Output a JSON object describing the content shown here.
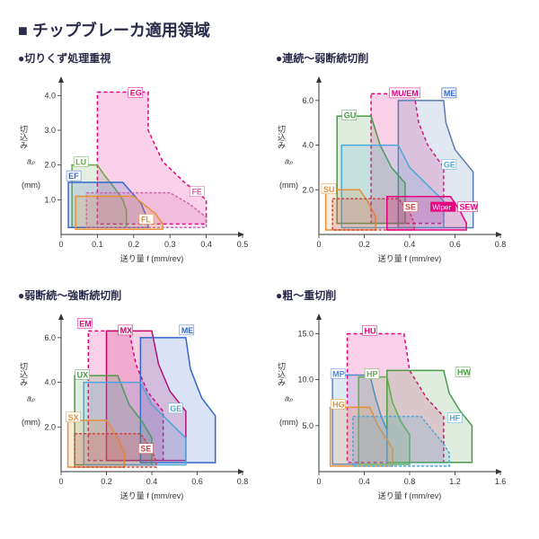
{
  "main_title": "■ チップブレーカ適用領域",
  "axes": {
    "xlabel": "送り量 f (mm/rev)",
    "ylabel_top": "切込み",
    "ylabel_mid": "aₚ",
    "ylabel_bot": "(mm)"
  },
  "charts": [
    {
      "subtitle": "●切りくず処理重視",
      "xlim": [
        0,
        0.5
      ],
      "xtick_step": 0.1,
      "ylim": [
        0,
        4.5
      ],
      "yticks": [
        1.0,
        2.0,
        3.0,
        4.0
      ],
      "regions": [
        {
          "label": "EG",
          "color": "#e6007e",
          "dash": "4,3",
          "poly": [
            [
              0.1,
              4.1
            ],
            [
              0.24,
              4.1
            ],
            [
              0.24,
              3.0
            ],
            [
              0.28,
              2.1
            ],
            [
              0.34,
              1.5
            ],
            [
              0.4,
              1.0
            ],
            [
              0.4,
              0.3
            ],
            [
              0.1,
              0.3
            ]
          ],
          "lx": 0.19,
          "ly": 4.0
        },
        {
          "label": "LU",
          "color": "#6aa84f",
          "dash": "",
          "poly": [
            [
              0.03,
              2.0
            ],
            [
              0.1,
              2.0
            ],
            [
              0.12,
              1.7
            ],
            [
              0.15,
              1.3
            ],
            [
              0.17,
              1.0
            ],
            [
              0.18,
              0.7
            ],
            [
              0.18,
              0.2
            ],
            [
              0.03,
              0.2
            ]
          ],
          "lx": 0.04,
          "ly": 2.0
        },
        {
          "label": "EF",
          "color": "#3366cc",
          "dash": "",
          "poly": [
            [
              0.02,
              1.5
            ],
            [
              0.17,
              1.5
            ],
            [
              0.22,
              0.9
            ],
            [
              0.24,
              0.4
            ],
            [
              0.24,
              0.2
            ],
            [
              0.02,
              0.2
            ]
          ],
          "lx": 0.02,
          "ly": 1.6
        },
        {
          "label": "FE",
          "color": "#cc66aa",
          "dash": "3,2",
          "poly": [
            [
              0.07,
              1.2
            ],
            [
              0.3,
              1.2
            ],
            [
              0.35,
              0.9
            ],
            [
              0.4,
              0.5
            ],
            [
              0.4,
              0.2
            ],
            [
              0.07,
              0.2
            ]
          ],
          "lx": 0.36,
          "ly": 1.15
        },
        {
          "label": "FL",
          "color": "#e69138",
          "dash": "",
          "poly": [
            [
              0.04,
              1.1
            ],
            [
              0.2,
              1.1
            ],
            [
              0.26,
              0.6
            ],
            [
              0.28,
              0.3
            ],
            [
              0.28,
              0.15
            ],
            [
              0.04,
              0.15
            ]
          ],
          "lx": 0.22,
          "ly": 0.35
        }
      ]
    },
    {
      "subtitle": "●連続～弱断続切削",
      "xlim": [
        0,
        0.8
      ],
      "xtick_step": 0.2,
      "ylim": [
        0,
        7
      ],
      "yticks": [
        2.0,
        4.0,
        6.0
      ],
      "regions": [
        {
          "label": "MU/EM",
          "color": "#e6007e",
          "dash": "4,3",
          "poly": [
            [
              0.23,
              6.3
            ],
            [
              0.42,
              6.3
            ],
            [
              0.44,
              5.0
            ],
            [
              0.48,
              4.0
            ],
            [
              0.55,
              3.0
            ],
            [
              0.55,
              0.5
            ],
            [
              0.23,
              0.5
            ]
          ],
          "lx": 0.32,
          "ly": 6.2,
          "extra_label": {
            "text": "ME",
            "color": "#3366cc",
            "lx": 0.55,
            "ly": 6.2
          }
        },
        {
          "label": "",
          "color": "#5b7db1",
          "dash": "",
          "poly": [
            [
              0.35,
              6.0
            ],
            [
              0.55,
              6.0
            ],
            [
              0.56,
              5.0
            ],
            [
              0.6,
              3.8
            ],
            [
              0.68,
              2.8
            ],
            [
              0.68,
              0.3
            ],
            [
              0.35,
              0.3
            ]
          ],
          "lx": 0,
          "ly": 0
        },
        {
          "label": "GU",
          "color": "#4a9a4a",
          "dash": "",
          "poly": [
            [
              0.08,
              5.3
            ],
            [
              0.23,
              5.3
            ],
            [
              0.27,
              4.0
            ],
            [
              0.32,
              3.0
            ],
            [
              0.38,
              2.3
            ],
            [
              0.38,
              0.5
            ],
            [
              0.08,
              0.5
            ]
          ],
          "lx": 0.11,
          "ly": 5.2
        },
        {
          "label": "GE",
          "color": "#4da6d9",
          "dash": "",
          "poly": [
            [
              0.1,
              4.0
            ],
            [
              0.35,
              4.0
            ],
            [
              0.4,
              3.0
            ],
            [
              0.48,
              2.2
            ],
            [
              0.55,
              1.5
            ],
            [
              0.55,
              0.3
            ],
            [
              0.1,
              0.3
            ]
          ],
          "lx": 0.55,
          "ly": 3.0
        },
        {
          "label": "SU",
          "color": "#e69138",
          "dash": "",
          "poly": [
            [
              0.03,
              2.0
            ],
            [
              0.18,
              2.0
            ],
            [
              0.22,
              1.4
            ],
            [
              0.25,
              0.8
            ],
            [
              0.25,
              0.2
            ],
            [
              0.03,
              0.2
            ]
          ],
          "lx": 0.02,
          "ly": 1.9
        },
        {
          "label": "SE",
          "color": "#cc4444",
          "dash": "3,2",
          "poly": [
            [
              0.06,
              1.6
            ],
            [
              0.35,
              1.6
            ],
            [
              0.4,
              1.0
            ],
            [
              0.42,
              0.5
            ],
            [
              0.42,
              0.2
            ],
            [
              0.06,
              0.2
            ]
          ],
          "lx": 0.38,
          "ly": 1.1
        },
        {
          "label": "SEW",
          "color": "#e6007e",
          "dash": "",
          "poly": [
            [
              0.3,
              1.7
            ],
            [
              0.58,
              1.7
            ],
            [
              0.62,
              1.1
            ],
            [
              0.65,
              0.5
            ],
            [
              0.65,
              0.2
            ],
            [
              0.3,
              0.2
            ]
          ],
          "lx": 0.62,
          "ly": 1.1,
          "wiper": {
            "lx": 0.5,
            "ly": 1.1
          }
        }
      ]
    },
    {
      "subtitle": "●弱断続～強断続切削",
      "xlim": [
        0,
        0.8
      ],
      "xtick_step": 0.2,
      "ylim": [
        0,
        7
      ],
      "yticks": [
        2.0,
        4.0,
        6.0
      ],
      "regions": [
        {
          "label": "EM",
          "color": "#e6007e",
          "dash": "4,3",
          "poly": [
            [
              0.12,
              6.3
            ],
            [
              0.3,
              6.3
            ],
            [
              0.33,
              4.8
            ],
            [
              0.38,
              3.6
            ],
            [
              0.45,
              2.7
            ],
            [
              0.45,
              0.5
            ],
            [
              0.12,
              0.5
            ]
          ],
          "lx": 0.08,
          "ly": 6.5
        },
        {
          "label": "MX",
          "color": "#cc0066",
          "dash": "",
          "poly": [
            [
              0.2,
              6.3
            ],
            [
              0.4,
              6.3
            ],
            [
              0.43,
              4.8
            ],
            [
              0.48,
              3.6
            ],
            [
              0.55,
              2.7
            ],
            [
              0.55,
              0.5
            ],
            [
              0.2,
              0.5
            ]
          ],
          "lx": 0.26,
          "ly": 6.2
        },
        {
          "label": "ME",
          "color": "#3366cc",
          "dash": "",
          "poly": [
            [
              0.35,
              6.0
            ],
            [
              0.55,
              6.0
            ],
            [
              0.57,
              4.6
            ],
            [
              0.62,
              3.3
            ],
            [
              0.68,
              2.5
            ],
            [
              0.68,
              0.4
            ],
            [
              0.35,
              0.4
            ]
          ],
          "lx": 0.53,
          "ly": 6.2
        },
        {
          "label": "UX",
          "color": "#4a9a4a",
          "dash": "",
          "poly": [
            [
              0.06,
              4.3
            ],
            [
              0.25,
              4.3
            ],
            [
              0.3,
              3.0
            ],
            [
              0.36,
              2.2
            ],
            [
              0.4,
              1.5
            ],
            [
              0.4,
              0.3
            ],
            [
              0.06,
              0.3
            ]
          ],
          "lx": 0.07,
          "ly": 4.2
        },
        {
          "label": "GE",
          "color": "#4da6d9",
          "dash": "",
          "poly": [
            [
              0.1,
              4.0
            ],
            [
              0.35,
              4.0
            ],
            [
              0.4,
              3.0
            ],
            [
              0.48,
              2.2
            ],
            [
              0.55,
              1.5
            ],
            [
              0.55,
              0.3
            ],
            [
              0.1,
              0.3
            ]
          ],
          "lx": 0.48,
          "ly": 2.7
        },
        {
          "label": "SX",
          "color": "#e69138",
          "dash": "",
          "poly": [
            [
              0.03,
              2.3
            ],
            [
              0.2,
              2.3
            ],
            [
              0.25,
              1.5
            ],
            [
              0.28,
              0.8
            ],
            [
              0.28,
              0.2
            ],
            [
              0.03,
              0.2
            ]
          ],
          "lx": 0.03,
          "ly": 2.3
        },
        {
          "label": "SE",
          "color": "#cc4444",
          "dash": "3,2",
          "poly": [
            [
              0.06,
              1.7
            ],
            [
              0.35,
              1.7
            ],
            [
              0.4,
              1.0
            ],
            [
              0.42,
              0.4
            ],
            [
              0.42,
              0.2
            ],
            [
              0.06,
              0.2
            ]
          ],
          "lx": 0.35,
          "ly": 0.9
        }
      ]
    },
    {
      "subtitle": "●粗～重切削",
      "xlim": [
        0,
        1.6
      ],
      "xtick_step": 0.4,
      "ylim": [
        0,
        17
      ],
      "yticks": [
        5.0,
        10.0,
        15.0
      ],
      "regions": [
        {
          "label": "HU",
          "color": "#e6007e",
          "dash": "4,3",
          "poly": [
            [
              0.25,
              15.0
            ],
            [
              0.75,
              15.0
            ],
            [
              0.8,
              11.0
            ],
            [
              0.95,
              8.0
            ],
            [
              1.1,
              6.0
            ],
            [
              1.1,
              1.0
            ],
            [
              0.25,
              1.0
            ]
          ],
          "lx": 0.4,
          "ly": 15.0
        },
        {
          "label": "HW",
          "color": "#4a9a4a",
          "dash": "",
          "poly": [
            [
              0.6,
              11.0
            ],
            [
              1.1,
              11.0
            ],
            [
              1.15,
              8.5
            ],
            [
              1.25,
              6.5
            ],
            [
              1.35,
              5.0
            ],
            [
              1.35,
              1.0
            ],
            [
              0.6,
              1.0
            ]
          ],
          "lx": 1.22,
          "ly": 10.5
        },
        {
          "label": "MP",
          "color": "#5588cc",
          "dash": "",
          "poly": [
            [
              0.12,
              10.5
            ],
            [
              0.45,
              10.5
            ],
            [
              0.5,
              8.0
            ],
            [
              0.55,
              6.0
            ],
            [
              0.6,
              4.5
            ],
            [
              0.6,
              0.8
            ],
            [
              0.12,
              0.8
            ]
          ],
          "lx": 0.12,
          "ly": 10.3
        },
        {
          "label": "HP",
          "color": "#5fb04f",
          "dash": "",
          "poly": [
            [
              0.35,
              10.3
            ],
            [
              0.6,
              10.3
            ],
            [
              0.65,
              7.5
            ],
            [
              0.72,
              5.5
            ],
            [
              0.8,
              4.0
            ],
            [
              0.8,
              0.8
            ],
            [
              0.35,
              0.8
            ]
          ],
          "lx": 0.42,
          "ly": 10.3
        },
        {
          "label": "HG",
          "color": "#e69138",
          "dash": "",
          "poly": [
            [
              0.1,
              7.0
            ],
            [
              0.45,
              7.0
            ],
            [
              0.52,
              5.0
            ],
            [
              0.6,
              3.5
            ],
            [
              0.65,
              2.5
            ],
            [
              0.65,
              0.6
            ],
            [
              0.1,
              0.6
            ]
          ],
          "lx": 0.12,
          "ly": 7.0
        },
        {
          "label": "HF",
          "color": "#4da6d9",
          "dash": "3,2",
          "poly": [
            [
              0.3,
              6.0
            ],
            [
              0.9,
              6.0
            ],
            [
              1.0,
              4.5
            ],
            [
              1.1,
              3.0
            ],
            [
              1.15,
              2.0
            ],
            [
              1.15,
              0.6
            ],
            [
              0.3,
              0.6
            ]
          ],
          "lx": 1.15,
          "ly": 5.5
        }
      ]
    }
  ]
}
